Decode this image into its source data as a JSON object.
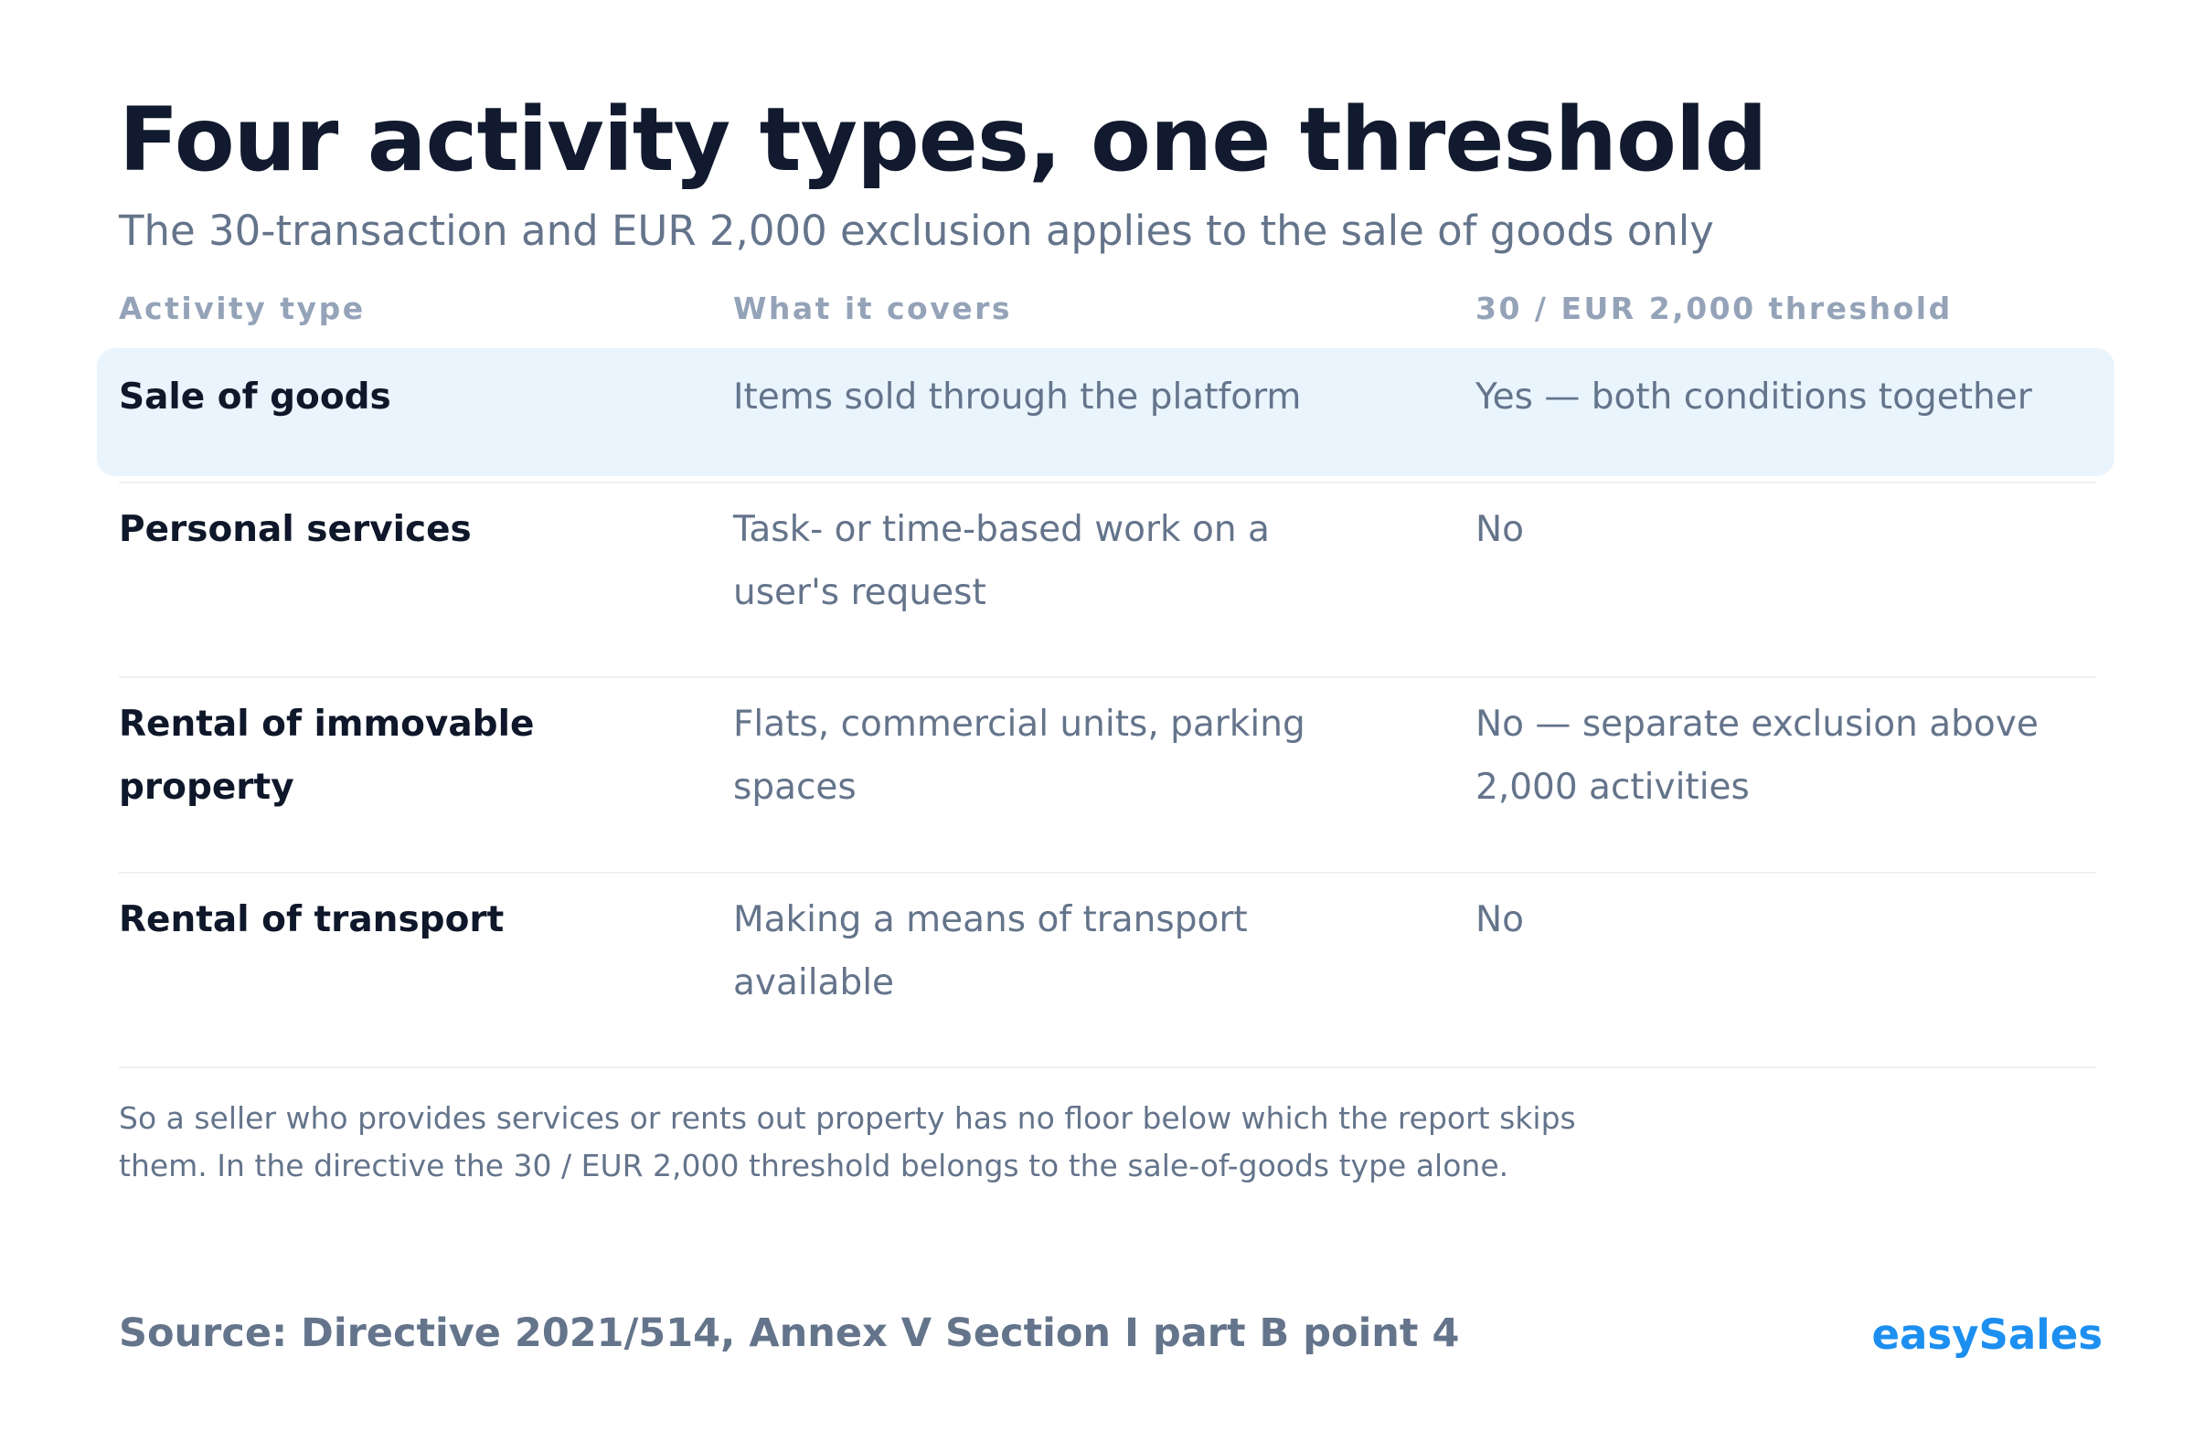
{
  "title": "Four activity types, one threshold",
  "subtitle": "The 30-transaction and EUR 2,000 exclusion applies to the sale of goods only",
  "table": {
    "headers": [
      "Activity type",
      "What it covers",
      "30 / EUR 2,000 threshold"
    ],
    "rows": [
      {
        "activity": "Sale of goods",
        "covers": "Items sold through the platform",
        "threshold": "Yes — both conditions together",
        "highlighted": true
      },
      {
        "activity": "Personal services",
        "covers": "Task- or time-based work on a user's request",
        "threshold": "No",
        "highlighted": false
      },
      {
        "activity": "Rental of immovable property",
        "covers": "Flats, commercial units, parking spaces",
        "threshold": "No — separate exclusion above 2,000 activities",
        "highlighted": false
      },
      {
        "activity": "Rental of transport",
        "covers": "Making a means of transport available",
        "threshold": "No",
        "highlighted": false
      }
    ]
  },
  "note": "So a seller who provides services or rents out property has no floor below which the report skips them. In the directive the 30 / EUR 2,000 threshold belongs to the sale-of-goods type alone.",
  "source": "Source: Directive 2021/514, Annex V Section I part B point 4",
  "brand": "easySales",
  "colors": {
    "highlight_background": "#e9f4fd",
    "brand": "#1c8ff0",
    "title": "#111a2e",
    "muted_text": "#64748b",
    "header_text": "#94a3b8"
  }
}
